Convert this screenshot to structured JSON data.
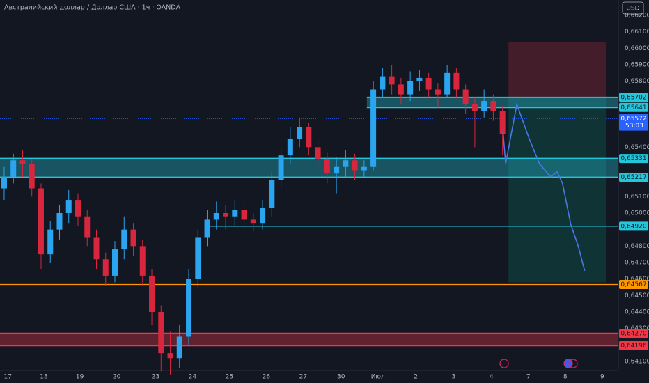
{
  "chart_data": {
    "type": "candlestick",
    "title": "Австралийский доллар / Доллар США · 1ч · OANDA",
    "currency": "USD",
    "up_color": "#2ba5f0",
    "down_color": "#d7263d",
    "xlim": [
      -0.45,
      66.55
    ],
    "ylim": [
      0.64045,
      0.66293
    ],
    "grid": false,
    "xticks": [
      {
        "value": 0.4,
        "label": "17"
      },
      {
        "value": 4.3,
        "label": "18"
      },
      {
        "value": 8.2,
        "label": "19"
      },
      {
        "value": 12.2,
        "label": "20"
      },
      {
        "value": 16.4,
        "label": "23"
      },
      {
        "value": 20.4,
        "label": "24"
      },
      {
        "value": 24.4,
        "label": "25"
      },
      {
        "value": 28.4,
        "label": "26"
      },
      {
        "value": 32.4,
        "label": "27"
      },
      {
        "value": 36.5,
        "label": "30"
      },
      {
        "value": 40.5,
        "label": "Июл"
      },
      {
        "value": 44.6,
        "label": "2"
      },
      {
        "value": 48.7,
        "label": "3"
      },
      {
        "value": 52.8,
        "label": "4"
      },
      {
        "value": 56.8,
        "label": "7"
      },
      {
        "value": 60.8,
        "label": "8"
      },
      {
        "value": 64.8,
        "label": "9"
      }
    ],
    "yticks": [
      {
        "value": 0.662,
        "label": "0,66200"
      },
      {
        "value": 0.661,
        "label": "0,66100"
      },
      {
        "value": 0.66,
        "label": "0,66000"
      },
      {
        "value": 0.659,
        "label": "0,65900"
      },
      {
        "value": 0.658,
        "label": "0,65800"
      },
      {
        "value": 0.654,
        "label": "0,65400"
      },
      {
        "value": 0.651,
        "label": "0,65100"
      },
      {
        "value": 0.65,
        "label": "0,65000"
      },
      {
        "value": 0.648,
        "label": "0,64800"
      },
      {
        "value": 0.647,
        "label": "0,64700"
      },
      {
        "value": 0.646,
        "label": "0,64600"
      },
      {
        "value": 0.645,
        "label": "0,64500"
      },
      {
        "value": 0.644,
        "label": "0,64400"
      },
      {
        "value": 0.643,
        "label": "0,64300"
      },
      {
        "value": 0.641,
        "label": "0,64100"
      }
    ],
    "candles": [
      [
        0.6515,
        0.6528,
        0.6508,
        0.6522
      ],
      [
        0.6522,
        0.6536,
        0.6518,
        0.6532
      ],
      [
        0.6532,
        0.6538,
        0.6522,
        0.653
      ],
      [
        0.653,
        0.6533,
        0.651,
        0.6515
      ],
      [
        0.6515,
        0.6518,
        0.6466,
        0.6475
      ],
      [
        0.6475,
        0.6495,
        0.647,
        0.649
      ],
      [
        0.649,
        0.6505,
        0.6484,
        0.65
      ],
      [
        0.65,
        0.6514,
        0.6494,
        0.6508
      ],
      [
        0.6508,
        0.6512,
        0.6492,
        0.6498
      ],
      [
        0.6498,
        0.6502,
        0.648,
        0.6485
      ],
      [
        0.6485,
        0.649,
        0.6466,
        0.6472
      ],
      [
        0.6472,
        0.6476,
        0.6456,
        0.6462
      ],
      [
        0.6462,
        0.6483,
        0.6458,
        0.6478
      ],
      [
        0.6478,
        0.6498,
        0.6472,
        0.649
      ],
      [
        0.649,
        0.6494,
        0.6474,
        0.648
      ],
      [
        0.648,
        0.6484,
        0.6456,
        0.6462
      ],
      [
        0.6462,
        0.6466,
        0.6432,
        0.644
      ],
      [
        0.644,
        0.6444,
        0.6404,
        0.6415
      ],
      [
        0.6415,
        0.6428,
        0.6402,
        0.6412
      ],
      [
        0.6412,
        0.6432,
        0.6406,
        0.6425
      ],
      [
        0.6425,
        0.6466,
        0.642,
        0.646
      ],
      [
        0.646,
        0.649,
        0.6455,
        0.6485
      ],
      [
        0.6485,
        0.6502,
        0.648,
        0.6496
      ],
      [
        0.6496,
        0.6507,
        0.649,
        0.65
      ],
      [
        0.65,
        0.6505,
        0.649,
        0.6498
      ],
      [
        0.6498,
        0.6508,
        0.6492,
        0.6502
      ],
      [
        0.6502,
        0.6506,
        0.6489,
        0.6496
      ],
      [
        0.6496,
        0.65,
        0.6489,
        0.6494
      ],
      [
        0.6494,
        0.6508,
        0.649,
        0.6503
      ],
      [
        0.6503,
        0.6525,
        0.6498,
        0.652
      ],
      [
        0.652,
        0.654,
        0.6515,
        0.6535
      ],
      [
        0.6535,
        0.6552,
        0.653,
        0.6545
      ],
      [
        0.6545,
        0.6558,
        0.654,
        0.6552
      ],
      [
        0.6552,
        0.6555,
        0.6535,
        0.654
      ],
      [
        0.654,
        0.6545,
        0.6527,
        0.6533
      ],
      [
        0.6533,
        0.6537,
        0.6518,
        0.6524
      ],
      [
        0.6524,
        0.6534,
        0.6512,
        0.6528
      ],
      [
        0.6528,
        0.6538,
        0.6522,
        0.6532
      ],
      [
        0.6532,
        0.6536,
        0.652,
        0.6526
      ],
      [
        0.6526,
        0.6532,
        0.6522,
        0.6528
      ],
      [
        0.6528,
        0.658,
        0.6526,
        0.6575
      ],
      [
        0.6575,
        0.6588,
        0.657,
        0.6583
      ],
      [
        0.6583,
        0.659,
        0.6572,
        0.6578
      ],
      [
        0.6578,
        0.6582,
        0.6566,
        0.6572
      ],
      [
        0.6572,
        0.6586,
        0.6568,
        0.658
      ],
      [
        0.658,
        0.6587,
        0.6574,
        0.6582
      ],
      [
        0.6582,
        0.6585,
        0.657,
        0.6575
      ],
      [
        0.6575,
        0.6579,
        0.6564,
        0.6572
      ],
      [
        0.6572,
        0.659,
        0.657,
        0.6585
      ],
      [
        0.6585,
        0.6588,
        0.657,
        0.6575
      ],
      [
        0.6575,
        0.6578,
        0.656,
        0.6566
      ],
      [
        0.6566,
        0.657,
        0.654,
        0.6562
      ],
      [
        0.6562,
        0.6575,
        0.6558,
        0.6568
      ],
      [
        0.6568,
        0.6572,
        0.6556,
        0.6562
      ],
      [
        0.6562,
        0.6565,
        0.6535,
        0.6548
      ]
    ],
    "projection": {
      "color": "#4a78e8",
      "x": [
        54.04,
        54.34,
        55.55,
        56.9,
        58.0,
        59.2,
        59.9,
        60.5,
        61.4,
        62.2,
        62.9
      ],
      "values": [
        0.655,
        0.653,
        0.6566,
        0.6545,
        0.653,
        0.6522,
        0.6525,
        0.6518,
        0.6493,
        0.648,
        0.6465
      ]
    },
    "position": {
      "x": [
        54.65,
        65.2
      ],
      "entry": 0.65702,
      "stop": 0.66039,
      "target": 0.6458
    },
    "zones": [
      {
        "from": -0.45,
        "top": 0.65331,
        "bottom": 0.65217,
        "top_label": "0,65331",
        "bottom_label": "0,65217",
        "color": "#26c6da"
      },
      {
        "from": 39.3,
        "top": 0.65702,
        "bottom": 0.65641,
        "top_label": "0,65702",
        "bottom_label": "0,65641",
        "color": "#26c6da"
      },
      {
        "from": -0.45,
        "top": 0.6427,
        "bottom": 0.64196,
        "top_label": "0,64270",
        "bottom_label": "0,64196",
        "color": "#f23645"
      }
    ],
    "lines": [
      {
        "from": 22.2,
        "value": 0.6492,
        "label": "0,64920",
        "color": "#26c6da"
      },
      {
        "from": -0.45,
        "value": 0.64567,
        "label": "0,64567",
        "color": "#ff9800"
      }
    ],
    "current": {
      "value": 0.65572,
      "label": "0,65572",
      "countdown": "53:03",
      "color": "#2962ff"
    }
  }
}
